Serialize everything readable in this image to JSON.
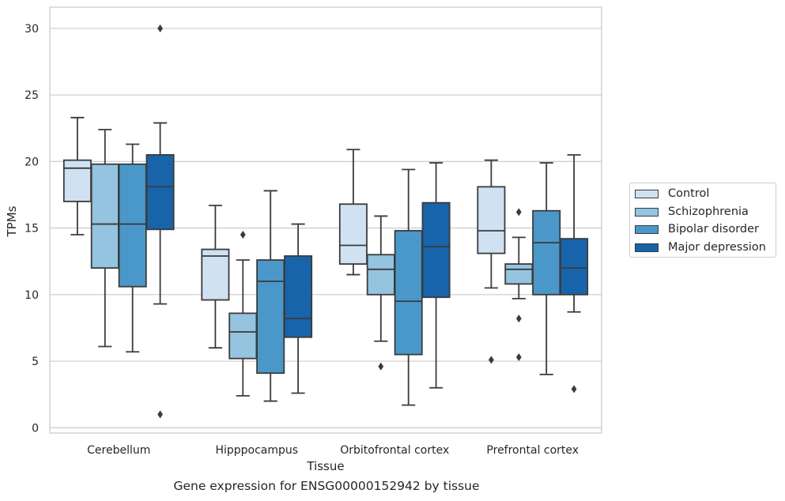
{
  "chart_data": {
    "type": "box",
    "title": "",
    "caption": "Gene expression for ENSG00000152942 by tissue",
    "xlabel": "Tissue",
    "ylabel": "TPMs",
    "ylim": [
      -0.4,
      31.6
    ],
    "yticks": [
      0,
      5,
      10,
      15,
      20,
      25,
      30
    ],
    "grid": "horizontal",
    "legend_position": "right",
    "categories": [
      "Cerebellum",
      "Hipppocampus",
      "Orbitofrontal cortex",
      "Prefrontal cortex"
    ],
    "series": [
      {
        "name": "Control",
        "color": "#d0e1f2",
        "boxes": [
          {
            "whislo": 14.5,
            "q1": 17.0,
            "med": 19.5,
            "q3": 20.1,
            "whishi": 23.3,
            "fliers": []
          },
          {
            "whislo": 6.0,
            "q1": 9.6,
            "med": 12.9,
            "q3": 13.4,
            "whishi": 16.7,
            "fliers": []
          },
          {
            "whislo": 11.5,
            "q1": 12.3,
            "med": 13.7,
            "q3": 16.8,
            "whishi": 20.9,
            "fliers": []
          },
          {
            "whislo": 10.5,
            "q1": 13.1,
            "med": 14.8,
            "q3": 18.1,
            "whishi": 20.1,
            "fliers": [
              5.1
            ]
          }
        ]
      },
      {
        "name": "Schizophrenia",
        "color": "#94c4df",
        "boxes": [
          {
            "whislo": 6.1,
            "q1": 12.0,
            "med": 15.3,
            "q3": 19.8,
            "whishi": 22.4,
            "fliers": []
          },
          {
            "whislo": 2.4,
            "q1": 5.2,
            "med": 7.2,
            "q3": 8.6,
            "whishi": 12.6,
            "fliers": [
              14.5
            ]
          },
          {
            "whislo": 6.5,
            "q1": 10.0,
            "med": 11.9,
            "q3": 13.0,
            "whishi": 15.9,
            "fliers": [
              4.6
            ]
          },
          {
            "whislo": 9.7,
            "q1": 10.8,
            "med": 11.9,
            "q3": 12.3,
            "whishi": 14.3,
            "fliers": [
              16.2,
              8.2,
              5.3
            ]
          }
        ]
      },
      {
        "name": "Bipolar disorder",
        "color": "#4a98c9",
        "boxes": [
          {
            "whislo": 5.7,
            "q1": 10.6,
            "med": 15.3,
            "q3": 19.8,
            "whishi": 21.3,
            "fliers": []
          },
          {
            "whislo": 2.0,
            "q1": 4.1,
            "med": 11.0,
            "q3": 12.6,
            "whishi": 17.8,
            "fliers": []
          },
          {
            "whislo": 1.7,
            "q1": 5.5,
            "med": 9.5,
            "q3": 14.8,
            "whishi": 19.4,
            "fliers": []
          },
          {
            "whislo": 4.0,
            "q1": 10.0,
            "med": 13.9,
            "q3": 16.3,
            "whishi": 19.9,
            "fliers": []
          }
        ]
      },
      {
        "name": "Major depression",
        "color": "#1764ab",
        "boxes": [
          {
            "whislo": 9.3,
            "q1": 14.9,
            "med": 18.1,
            "q3": 20.5,
            "whishi": 22.9,
            "fliers": [
              30.0,
              1.0
            ]
          },
          {
            "whislo": 2.6,
            "q1": 6.8,
            "med": 8.2,
            "q3": 12.9,
            "whishi": 15.3,
            "fliers": []
          },
          {
            "whislo": 3.0,
            "q1": 9.8,
            "med": 13.6,
            "q3": 16.9,
            "whishi": 19.9,
            "fliers": []
          },
          {
            "whislo": 8.7,
            "q1": 10.0,
            "med": 12.0,
            "q3": 14.2,
            "whishi": 20.5,
            "fliers": [
              2.9
            ]
          }
        ]
      }
    ]
  }
}
